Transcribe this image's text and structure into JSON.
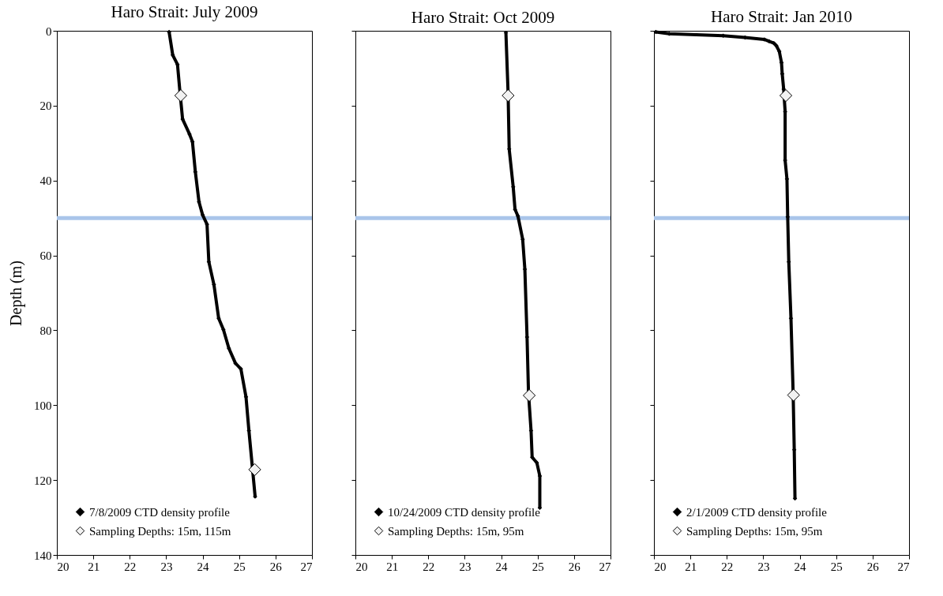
{
  "chart_data": [
    {
      "type": "scatter",
      "title": "Haro Strait: July 2009",
      "ylabel": "Depth (m)",
      "xlim": [
        20,
        27
      ],
      "xticks": [
        20,
        21,
        22,
        23,
        24,
        25,
        26,
        27
      ],
      "ylim": [
        140,
        0
      ],
      "yticks": [
        0,
        20,
        40,
        60,
        80,
        100,
        120,
        140
      ],
      "grid": false,
      "legend": "bottom left",
      "marker": "diamond",
      "ref_lines": [
        {
          "axis": "y",
          "value": 50,
          "color": "#a9c5ea"
        }
      ],
      "series": [
        {
          "name": "7/8/2009 CTD density profile",
          "type": "line",
          "color": "#000000",
          "x": [
            23.08,
            23.18,
            23.31,
            23.38,
            23.45,
            23.64,
            23.72,
            23.8,
            23.9,
            24.0,
            24.12,
            24.17,
            24.31,
            24.44,
            24.57,
            24.72,
            24.9,
            25.05,
            25.19,
            25.27,
            25.44
          ],
          "values": [
            0.3,
            6.5,
            9,
            16.6,
            23.6,
            27.6,
            29.6,
            37.7,
            45.7,
            49.2,
            51.7,
            61.7,
            67.8,
            76.8,
            79.8,
            84.8,
            88.8,
            90.3,
            97.8,
            106.8,
            124.4
          ]
        },
        {
          "name": "Sampling Depths: 15m, 115m",
          "type": "scatter",
          "color": "#f2f2f2",
          "x": [
            23.4,
            25.43
          ],
          "values": [
            17.3,
            117.2
          ]
        }
      ]
    },
    {
      "type": "scatter",
      "title": "Haro Strait: Oct 2009",
      "xlim": [
        20,
        27
      ],
      "xticks": [
        20,
        21,
        22,
        23,
        24,
        25,
        26,
        27
      ],
      "ylim": [
        140,
        0
      ],
      "yticks": [
        0,
        20,
        40,
        60,
        80,
        100,
        120,
        140
      ],
      "grid": false,
      "legend": "bottom left",
      "marker": "diamond",
      "tick_labels": "x",
      "ref_lines": [
        {
          "axis": "y",
          "value": 50,
          "color": "#a9c5ea"
        }
      ],
      "series": [
        {
          "name": "10/24/2009 CTD density profile",
          "type": "line",
          "color": "#000000",
          "x": [
            24.13,
            24.19,
            24.22,
            24.33,
            24.38,
            24.46,
            24.59,
            24.65,
            24.71,
            24.75,
            24.82,
            24.85,
            24.98,
            25.06,
            25.06
          ],
          "values": [
            0.5,
            16.6,
            31.6,
            41.7,
            47.7,
            49.5,
            55.7,
            63.7,
            81.8,
            96.8,
            106.8,
            113.9,
            115.4,
            118.9,
            127.4
          ]
        },
        {
          "name": "Sampling Depths: 15m, 95m",
          "type": "scatter",
          "color": "#f2f2f2",
          "x": [
            24.19,
            24.77
          ],
          "values": [
            17.3,
            97.4
          ]
        }
      ]
    },
    {
      "type": "scatter",
      "title": "Haro Strait: Jan 2010",
      "xlim": [
        20,
        27
      ],
      "xticks": [
        20,
        21,
        22,
        23,
        24,
        25,
        26,
        27
      ],
      "ylim": [
        140,
        0
      ],
      "yticks": [
        0,
        20,
        40,
        60,
        80,
        100,
        120,
        140
      ],
      "grid": false,
      "legend": "bottom left",
      "marker": "diamond",
      "tick_labels": "x",
      "ref_lines": [
        {
          "axis": "y",
          "value": 50,
          "color": "#a9c5ea"
        }
      ],
      "series": [
        {
          "name": "2/1/2009 CTD density profile",
          "type": "line",
          "color": "#000000",
          "x": [
            20.05,
            20.42,
            21.9,
            22.5,
            23.03,
            23.16,
            23.29,
            23.36,
            23.44,
            23.5,
            23.52,
            23.56,
            23.6,
            23.6,
            23.65,
            23.67,
            23.7,
            23.76,
            23.82,
            23.85,
            23.87
          ],
          "values": [
            0.3,
            0.8,
            1.3,
            1.8,
            2.3,
            2.8,
            3.3,
            4.0,
            5.5,
            8.5,
            11.5,
            15.6,
            21.6,
            34.6,
            39.6,
            49.7,
            61.7,
            76.8,
            96.8,
            111.9,
            124.9
          ]
        },
        {
          "name": "Sampling Depths: 15m, 95m",
          "type": "scatter",
          "color": "#f2f2f2",
          "x": [
            23.62,
            23.83
          ],
          "values": [
            17.3,
            97.3
          ]
        }
      ]
    }
  ]
}
